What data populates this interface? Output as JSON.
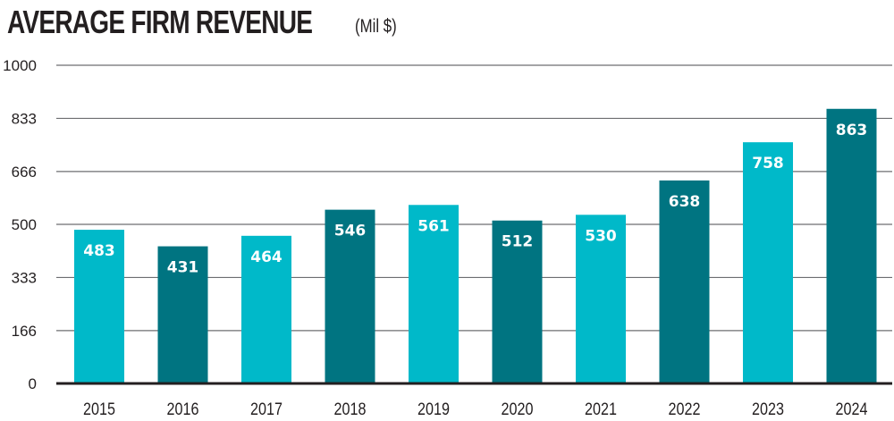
{
  "chart_data": {
    "type": "bar",
    "title": "AVERAGE FIRM REVENUE",
    "subtitle": "(Mil $)",
    "xlabel": "",
    "ylabel": "",
    "categories": [
      "2015",
      "2016",
      "2017",
      "2018",
      "2019",
      "2020",
      "2021",
      "2022",
      "2023",
      "2024"
    ],
    "values": [
      483,
      431,
      464,
      546,
      561,
      512,
      530,
      638,
      758,
      863
    ],
    "data_labels": [
      "483",
      "431",
      "464",
      "546",
      "561",
      "512",
      "530",
      "638",
      "758",
      "863"
    ],
    "ylim": [
      0,
      1000
    ],
    "yticks": [
      0,
      166,
      333,
      500,
      666,
      833,
      1000
    ],
    "ytick_labels": [
      "0",
      "166",
      "333",
      "500",
      "666",
      "833",
      "1000"
    ],
    "grid": true,
    "legend": "none",
    "colors": [
      "#00b9c9",
      "#007481"
    ]
  }
}
